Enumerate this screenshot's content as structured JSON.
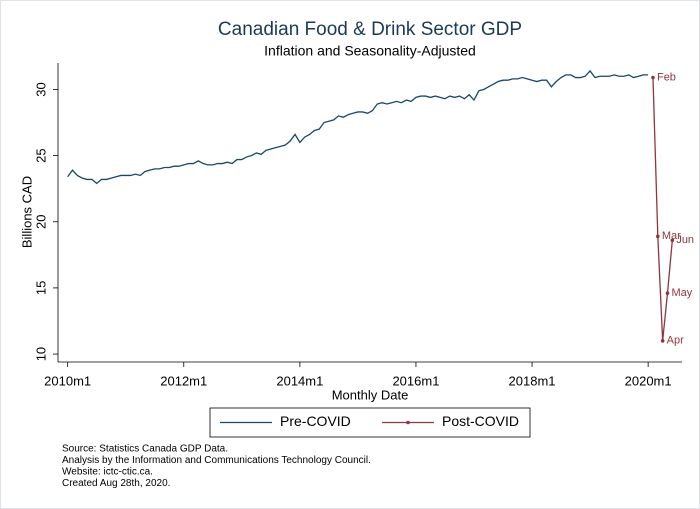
{
  "chart_data": {
    "type": "line",
    "title": "Canadian Food & Drink Sector GDP",
    "subtitle": "Inflation and Seasonality-Adjusted",
    "xlabel": "Monthly Date",
    "ylabel": "Billions CAD",
    "xlim": [
      "2009m11",
      "2020m8"
    ],
    "xticks": [
      "2010m1",
      "2012m1",
      "2014m1",
      "2016m1",
      "2018m1",
      "2020m1"
    ],
    "ylim": [
      9.4,
      32
    ],
    "yticks": [
      10,
      15,
      20,
      25,
      30
    ],
    "grid": false,
    "legend": "bottom",
    "series": [
      {
        "name": "Pre-COVID",
        "color": "#1a476f",
        "marker": false,
        "x": [
          "2010m1",
          "2010m2",
          "2010m3",
          "2010m4",
          "2010m5",
          "2010m6",
          "2010m7",
          "2010m8",
          "2010m9",
          "2010m10",
          "2010m11",
          "2010m12",
          "2011m1",
          "2011m2",
          "2011m3",
          "2011m4",
          "2011m5",
          "2011m6",
          "2011m7",
          "2011m8",
          "2011m9",
          "2011m10",
          "2011m11",
          "2011m12",
          "2012m1",
          "2012m2",
          "2012m3",
          "2012m4",
          "2012m5",
          "2012m6",
          "2012m7",
          "2012m8",
          "2012m9",
          "2012m10",
          "2012m11",
          "2012m12",
          "2013m1",
          "2013m2",
          "2013m3",
          "2013m4",
          "2013m5",
          "2013m6",
          "2013m7",
          "2013m8",
          "2013m9",
          "2013m10",
          "2013m11",
          "2013m12",
          "2014m1",
          "2014m2",
          "2014m3",
          "2014m4",
          "2014m5",
          "2014m6",
          "2014m7",
          "2014m8",
          "2014m9",
          "2014m10",
          "2014m11",
          "2014m12",
          "2015m1",
          "2015m2",
          "2015m3",
          "2015m4",
          "2015m5",
          "2015m6",
          "2015m7",
          "2015m8",
          "2015m9",
          "2015m10",
          "2015m11",
          "2015m12",
          "2016m1",
          "2016m2",
          "2016m3",
          "2016m4",
          "2016m5",
          "2016m6",
          "2016m7",
          "2016m8",
          "2016m9",
          "2016m10",
          "2016m11",
          "2016m12",
          "2017m1",
          "2017m2",
          "2017m3",
          "2017m4",
          "2017m5",
          "2017m6",
          "2017m7",
          "2017m8",
          "2017m9",
          "2017m10",
          "2017m11",
          "2017m12",
          "2018m1",
          "2018m2",
          "2018m3",
          "2018m4",
          "2018m5",
          "2018m6",
          "2018m7",
          "2018m8",
          "2018m9",
          "2018m10",
          "2018m11",
          "2018m12",
          "2019m1",
          "2019m2",
          "2019m3",
          "2019m4",
          "2019m5",
          "2019m6",
          "2019m7",
          "2019m8",
          "2019m9",
          "2019m10",
          "2019m11",
          "2019m12",
          "2020m1"
        ],
        "values": [
          23.4,
          23.9,
          23.5,
          23.3,
          23.2,
          23.2,
          22.9,
          23.2,
          23.2,
          23.3,
          23.4,
          23.5,
          23.5,
          23.5,
          23.6,
          23.5,
          23.8,
          23.9,
          24.0,
          24.0,
          24.1,
          24.1,
          24.2,
          24.2,
          24.3,
          24.4,
          24.4,
          24.6,
          24.4,
          24.3,
          24.3,
          24.4,
          24.4,
          24.5,
          24.4,
          24.7,
          24.7,
          24.9,
          25.0,
          25.2,
          25.1,
          25.4,
          25.5,
          25.6,
          25.7,
          25.8,
          26.1,
          26.6,
          26.0,
          26.4,
          26.6,
          26.9,
          27.0,
          27.5,
          27.6,
          27.7,
          28.0,
          27.9,
          28.1,
          28.2,
          28.3,
          28.3,
          28.2,
          28.4,
          28.9,
          29.0,
          28.9,
          29.0,
          29.1,
          29.0,
          29.2,
          29.1,
          29.4,
          29.5,
          29.5,
          29.4,
          29.5,
          29.4,
          29.3,
          29.5,
          29.4,
          29.5,
          29.3,
          29.6,
          29.2,
          29.9,
          30.0,
          30.2,
          30.4,
          30.6,
          30.7,
          30.7,
          30.8,
          30.8,
          30.9,
          30.8,
          30.7,
          30.6,
          30.7,
          30.7,
          30.2,
          30.6,
          30.9,
          31.1,
          31.1,
          30.9,
          30.9,
          31.0,
          31.4,
          30.9,
          31.0,
          31.0,
          31.0,
          31.1,
          31.0,
          31.0,
          31.1,
          30.9,
          31.0,
          31.1,
          31.1
        ]
      },
      {
        "name": "Post-COVID",
        "color": "#90353b",
        "marker": true,
        "x": [
          "2020m2",
          "2020m3",
          "2020m4",
          "2020m5",
          "2020m6"
        ],
        "values": [
          30.9,
          18.9,
          11.0,
          14.6,
          18.6
        ],
        "point_labels": [
          "Feb",
          "Mar",
          "Apr",
          "May",
          "Jun"
        ]
      }
    ],
    "notes": [
      "Source: Statistics Canada GDP Data.",
      "Analysis by the Information and Communications Technology Council.",
      "Website: ictc-ctic.ca.",
      "Created Aug 28th, 2020."
    ]
  }
}
